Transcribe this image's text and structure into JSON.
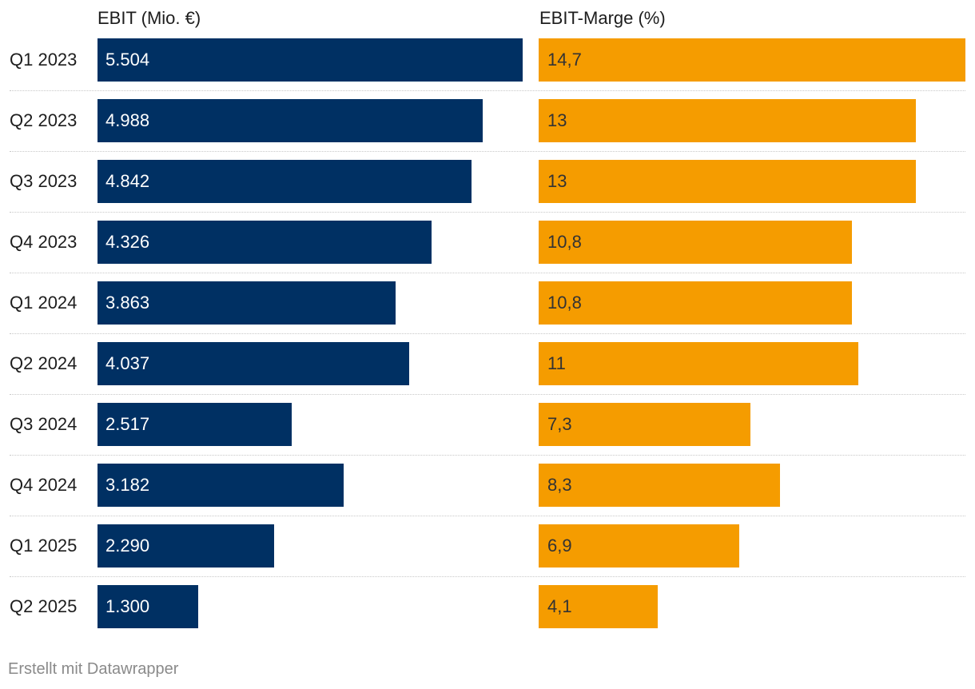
{
  "chart_data": {
    "type": "bar",
    "orientation": "horizontal",
    "categories": [
      "Q1 2023",
      "Q2 2023",
      "Q3 2023",
      "Q4 2023",
      "Q1 2024",
      "Q2 2024",
      "Q3 2024",
      "Q4 2024",
      "Q1 2025",
      "Q2 2025"
    ],
    "series": [
      {
        "name": "EBIT (Mio. €)",
        "values": [
          5504,
          4988,
          4842,
          4326,
          3863,
          4037,
          2517,
          3182,
          2290,
          1300
        ],
        "labels": [
          "5.504",
          "4.988",
          "4.842",
          "4.326",
          "3.863",
          "4.037",
          "2.517",
          "3.182",
          "2.290",
          "1.300"
        ],
        "color": "#003063",
        "max": 5504
      },
      {
        "name": "EBIT-Marge (%)",
        "values": [
          14.7,
          13,
          13,
          10.8,
          10.8,
          11,
          7.3,
          8.3,
          6.9,
          4.1
        ],
        "labels": [
          "14,7",
          "13",
          "13",
          "10,8",
          "10,8",
          "11",
          "7,3",
          "8,3",
          "6,9",
          "4,1"
        ],
        "color": "#f59c00",
        "max": 14.7
      }
    ],
    "title": "",
    "xlabel": "",
    "ylabel": "",
    "grid": false
  },
  "footer": {
    "text": "Erstellt mit Datawrapper"
  }
}
